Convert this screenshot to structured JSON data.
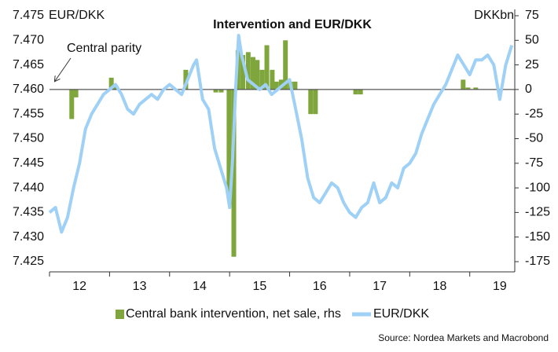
{
  "chart_data": {
    "type": "combo",
    "title": "Intervention and EUR/DKK",
    "y_label": "EUR/DKK",
    "y2_label": "DKKbn",
    "annotation": "Central parity",
    "source": "Source: Nordea Markets and Macrobond",
    "xlim": [
      2012,
      2019.75
    ],
    "xticks": [
      {
        "value": 2012.5,
        "label": "12"
      },
      {
        "value": 2013.5,
        "label": "13"
      },
      {
        "value": 2014.5,
        "label": "14"
      },
      {
        "value": 2015.5,
        "label": "15"
      },
      {
        "value": 2016.5,
        "label": "16"
      },
      {
        "value": 2017.5,
        "label": "17"
      },
      {
        "value": 2018.5,
        "label": "18"
      },
      {
        "value": 2019.5,
        "label": "19"
      }
    ],
    "xminor": [
      2012,
      2013,
      2014,
      2015,
      2016,
      2017,
      2018,
      2019
    ],
    "ylim": [
      7.425,
      7.475
    ],
    "yticks": [
      7.425,
      {
        "value": 7.43,
        "label": "7.430"
      },
      7.435,
      {
        "value": 7.44,
        "label": "7.440"
      },
      7.445,
      {
        "value": 7.45,
        "label": "7.450"
      },
      7.455,
      {
        "value": 7.46,
        "label": "7.460"
      },
      7.465,
      {
        "value": 7.47,
        "label": "7.470"
      },
      7.475
    ],
    "y2lim": [
      -175,
      75
    ],
    "y2ticks": [
      -175,
      -150,
      -125,
      -100,
      -75,
      -50,
      -25,
      0,
      25,
      50,
      75
    ],
    "reference_line": 7.46,
    "series": [
      {
        "name": "Central bank intervention, net sale, rhs",
        "type": "bar",
        "axis": "y2",
        "color": "#7fa63c",
        "x": [
          2012.37,
          2012.44,
          2013.03,
          2013.08,
          2014.27,
          2014.77,
          2014.86,
          2014.99,
          2015.07,
          2015.14,
          2015.22,
          2015.31,
          2015.39,
          2015.46,
          2015.54,
          2015.62,
          2015.71,
          2015.78,
          2015.86,
          2015.93,
          2016.01,
          2016.09,
          2016.35,
          2016.43,
          2017.1,
          2017.18,
          2018.89,
          2018.97,
          2019.1
        ],
        "values": [
          -30,
          -8,
          12,
          5,
          20,
          -3,
          -3,
          -110,
          -170,
          40,
          35,
          38,
          33,
          30,
          20,
          45,
          20,
          8,
          10,
          50,
          8,
          8,
          -25,
          -25,
          -5,
          -5,
          10,
          2,
          2
        ]
      },
      {
        "name": "EUR/DKK",
        "type": "line",
        "color": "#9fd0f5",
        "x": [
          2012.0,
          2012.1,
          2012.2,
          2012.3,
          2012.4,
          2012.5,
          2012.6,
          2012.7,
          2012.8,
          2012.9,
          2013.0,
          2013.1,
          2013.2,
          2013.3,
          2013.4,
          2013.5,
          2013.6,
          2013.7,
          2013.8,
          2013.9,
          2014.0,
          2014.1,
          2014.2,
          2014.3,
          2014.4,
          2014.45,
          2014.55,
          2014.65,
          2014.75,
          2014.85,
          2014.95,
          2015.0,
          2015.05,
          2015.1,
          2015.15,
          2015.2,
          2015.3,
          2015.4,
          2015.5,
          2015.6,
          2015.7,
          2015.8,
          2015.9,
          2016.0,
          2016.1,
          2016.2,
          2016.3,
          2016.4,
          2016.5,
          2016.6,
          2016.7,
          2016.8,
          2016.9,
          2017.0,
          2017.1,
          2017.2,
          2017.3,
          2017.4,
          2017.5,
          2017.6,
          2017.7,
          2017.8,
          2017.9,
          2018.0,
          2018.1,
          2018.2,
          2018.3,
          2018.4,
          2018.5,
          2018.6,
          2018.7,
          2018.8,
          2018.9,
          2019.0,
          2019.1,
          2019.2,
          2019.3,
          2019.4,
          2019.5,
          2019.6,
          2019.7
        ],
        "values": [
          7.435,
          7.436,
          7.431,
          7.434,
          7.44,
          7.445,
          7.452,
          7.455,
          7.457,
          7.459,
          7.46,
          7.461,
          7.459,
          7.456,
          7.455,
          7.457,
          7.458,
          7.459,
          7.458,
          7.46,
          7.461,
          7.46,
          7.459,
          7.462,
          7.465,
          7.466,
          7.458,
          7.456,
          7.448,
          7.444,
          7.44,
          7.436,
          7.446,
          7.46,
          7.471,
          7.467,
          7.462,
          7.461,
          7.46,
          7.461,
          7.459,
          7.46,
          7.461,
          7.462,
          7.456,
          7.45,
          7.442,
          7.438,
          7.437,
          7.439,
          7.441,
          7.44,
          7.437,
          7.435,
          7.434,
          7.436,
          7.437,
          7.441,
          7.437,
          7.438,
          7.441,
          7.44,
          7.444,
          7.445,
          7.447,
          7.451,
          7.454,
          7.457,
          7.459,
          7.461,
          7.464,
          7.467,
          7.465,
          7.463,
          7.466,
          7.466,
          7.467,
          7.465,
          7.458,
          7.465,
          7.469
        ]
      }
    ]
  }
}
